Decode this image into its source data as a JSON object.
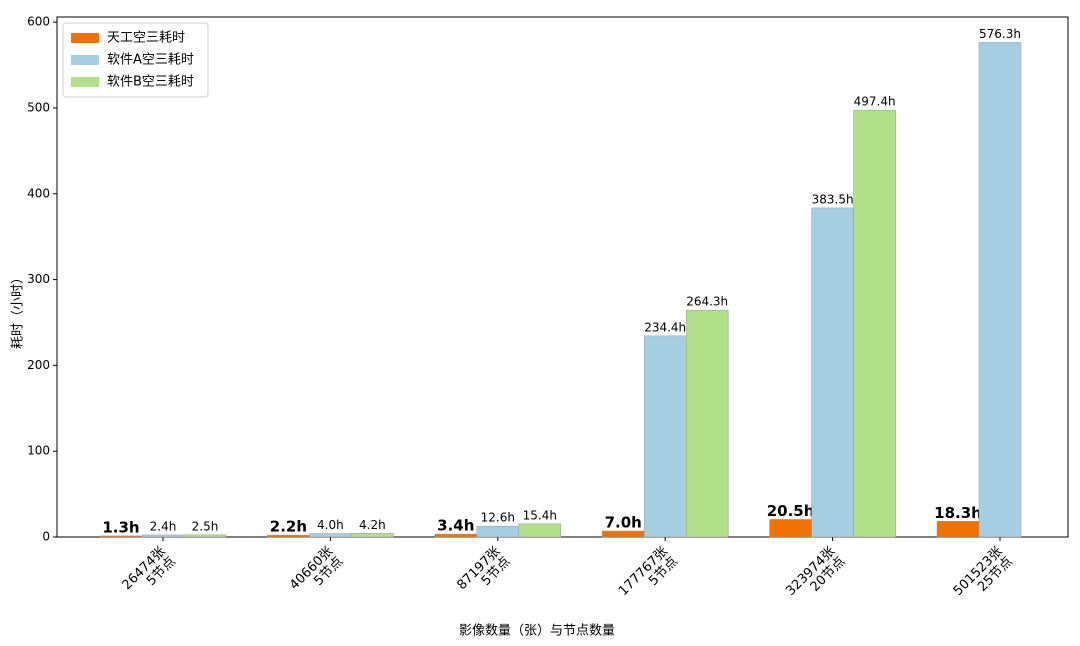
{
  "chart_data": {
    "type": "bar",
    "x_label": "影像数量（张）与节点数量",
    "y_label": "耗时（小时）",
    "categories": [
      "26474张\n5节点",
      "40660张\n5节点",
      "87197张\n5节点",
      "177767张\n5节点",
      "323974张\n20节点",
      "501523张\n25节点"
    ],
    "series": [
      {
        "name": "天工空三耗时",
        "color": "#f07000",
        "values": [
          1.3,
          2.2,
          3.4,
          7.0,
          20.5,
          18.3
        ],
        "value_labels": [
          "1.3h",
          "2.2h",
          "3.4h",
          "7.0h",
          "20.5h",
          "18.3h"
        ]
      },
      {
        "name": "软件A空三耗时",
        "color": "#a6cee3",
        "values": [
          2.4,
          4.0,
          12.6,
          234.4,
          383.5,
          576.3
        ],
        "value_labels": [
          "2.4h",
          "4.0h",
          "12.6h",
          "234.4h",
          "383.5h",
          "576.3h"
        ]
      },
      {
        "name": "软件B空三耗时",
        "color": "#b2df8a",
        "values": [
          2.5,
          4.2,
          15.4,
          264.3,
          497.4,
          null
        ],
        "value_labels": [
          "2.5h",
          "4.2h",
          "15.4h",
          "264.3h",
          "497.4h",
          null
        ]
      }
    ],
    "ylim": [
      0,
      606
    ],
    "yticks": [
      0,
      100,
      200,
      300,
      400,
      500,
      600
    ],
    "legend": "upper left"
  }
}
